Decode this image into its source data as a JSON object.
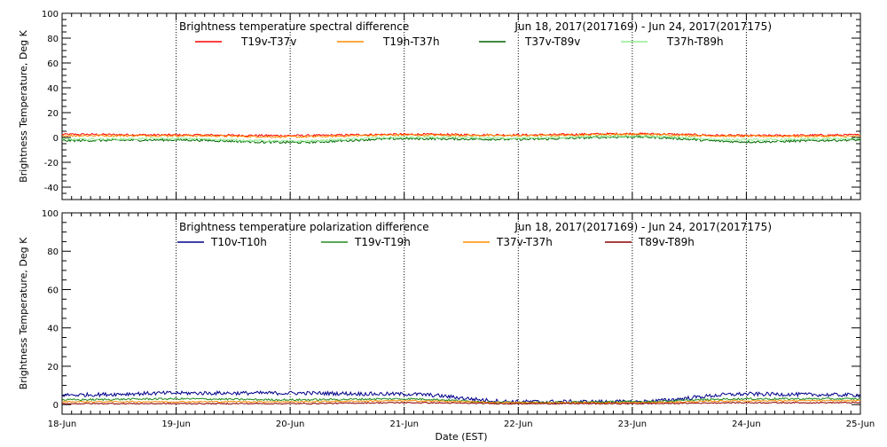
{
  "chart_data": [
    {
      "type": "line",
      "title": "Brightness temperature spectral difference",
      "date_range": "Jun 18, 2017(2017169) - Jun 24, 2017(2017175)",
      "ylabel": "Brightness Temperature, Deg K",
      "xlabel": "",
      "ylim": [
        -50,
        100
      ],
      "yticks": [
        -40,
        -20,
        0,
        20,
        40,
        60,
        80,
        100
      ],
      "xlim": [
        "2017-06-18",
        "2017-06-25"
      ],
      "grid": "vertical dotted at each day",
      "legend": "top, one row",
      "x": [
        "2017-06-18",
        "2017-06-19",
        "2017-06-20",
        "2017-06-21",
        "2017-06-22",
        "2017-06-23",
        "2017-06-24",
        "2017-06-25"
      ],
      "series": [
        {
          "name": "T19v-T37v",
          "color": "#ff0000",
          "values": [
            2.5,
            2,
            1.5,
            2.5,
            2,
            3,
            1.5,
            2
          ]
        },
        {
          "name": "T19h-T37h",
          "color": "#ff8c00",
          "values": [
            1.5,
            1.5,
            0.5,
            2,
            1.5,
            2.5,
            1,
            1
          ]
        },
        {
          "name": "T37v-T89v",
          "color": "#006400",
          "values": [
            -2.5,
            -2,
            -4,
            -1,
            -1.5,
            0.5,
            -3.5,
            -2
          ]
        },
        {
          "name": "T37h-T89h",
          "color": "#90ee90",
          "values": [
            -1.5,
            -1,
            -3,
            0,
            -0.5,
            1,
            -2,
            -1
          ]
        }
      ]
    },
    {
      "type": "line",
      "title": "Brightness temperature polarization difference",
      "date_range": "Jun 18, 2017(2017169) - Jun 24, 2017(2017175)",
      "ylabel": "Brightness Temperature, Deg K",
      "xlabel": "Date (EST)",
      "ylim": [
        -5,
        100
      ],
      "yticks": [
        0,
        20,
        40,
        60,
        80,
        100
      ],
      "xlim": [
        "2017-06-18",
        "2017-06-25"
      ],
      "xticks": [
        "18-Jun",
        "19-Jun",
        "20-Jun",
        "21-Jun",
        "22-Jun",
        "23-Jun",
        "24-Jun",
        "25-Jun"
      ],
      "grid": "vertical dotted at each day",
      "legend": "top, one row",
      "x": [
        "2017-06-18",
        "2017-06-19",
        "2017-06-20",
        "2017-06-21",
        "2017-06-22",
        "2017-06-23",
        "2017-06-24",
        "2017-06-25"
      ],
      "series": [
        {
          "name": "T10v-T10h",
          "color": "#00008b",
          "values": [
            5,
            6,
            6,
            5.5,
            1.5,
            1.5,
            5.5,
            5
          ]
        },
        {
          "name": "T19v-T19h",
          "color": "#228b22",
          "values": [
            2.5,
            3,
            2.5,
            3,
            1,
            1.5,
            3,
            3
          ]
        },
        {
          "name": "T37v-T37h",
          "color": "#ff8c00",
          "values": [
            1.5,
            1.5,
            1.5,
            2,
            1,
            1,
            2,
            2
          ]
        },
        {
          "name": "T89v-T89h",
          "color": "#8b0000",
          "values": [
            0.5,
            0.5,
            0.5,
            1,
            0.5,
            0.5,
            1,
            1
          ]
        }
      ]
    }
  ]
}
